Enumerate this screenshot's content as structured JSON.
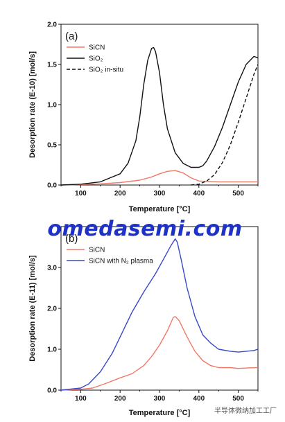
{
  "chart_data": [
    {
      "type": "line",
      "panel_label": "(a)",
      "xlabel": "Temperature [°C]",
      "ylabel": "Desorption rate (E-10) [mol/s]",
      "xlim": [
        50,
        550
      ],
      "ylim": [
        0,
        2.0
      ],
      "xticks": [
        100,
        200,
        300,
        400,
        500
      ],
      "yticks": [
        0.0,
        0.5,
        1.0,
        1.5,
        2.0
      ],
      "ytick_labels": [
        "0.0",
        "0.5",
        "1.0",
        "1.5",
        "2.0"
      ],
      "legend_position": "top-left",
      "series": [
        {
          "name": "SiCN",
          "color": "#f07868",
          "dash": "solid",
          "x": [
            50,
            100,
            150,
            200,
            250,
            280,
            300,
            320,
            340,
            360,
            380,
            400,
            420,
            450,
            500,
            550
          ],
          "y": [
            0.0,
            0.005,
            0.015,
            0.03,
            0.06,
            0.1,
            0.14,
            0.17,
            0.18,
            0.15,
            0.09,
            0.05,
            0.045,
            0.04,
            0.04,
            0.04
          ]
        },
        {
          "name": "SiO₂",
          "color": "#111111",
          "dash": "solid",
          "x": [
            50,
            100,
            150,
            200,
            220,
            240,
            250,
            260,
            270,
            280,
            285,
            290,
            300,
            310,
            320,
            340,
            360,
            380,
            400,
            410,
            420,
            440,
            460,
            480,
            500,
            520,
            540,
            550
          ],
          "y": [
            0.0,
            0.01,
            0.04,
            0.14,
            0.27,
            0.55,
            0.85,
            1.25,
            1.55,
            1.7,
            1.71,
            1.66,
            1.4,
            1.0,
            0.7,
            0.4,
            0.27,
            0.22,
            0.22,
            0.24,
            0.3,
            0.48,
            0.72,
            1.0,
            1.28,
            1.5,
            1.6,
            1.58
          ]
        },
        {
          "name": "SiO₂ in-situ",
          "color": "#111111",
          "dash": "dashed",
          "x": [
            380,
            400,
            420,
            440,
            460,
            480,
            500,
            520,
            540,
            550
          ],
          "y": [
            0.0,
            0.01,
            0.05,
            0.13,
            0.28,
            0.5,
            0.78,
            1.08,
            1.38,
            1.5
          ]
        }
      ]
    },
    {
      "type": "line",
      "panel_label": "(b)",
      "xlabel": "Temperature [°C]",
      "ylabel": "Desorption rate (E-11) [mol/s]",
      "xlim": [
        50,
        550
      ],
      "ylim": [
        0,
        4.0
      ],
      "xticks": [
        100,
        200,
        300,
        400,
        500
      ],
      "yticks": [
        0.0,
        1.0,
        2.0,
        3.0
      ],
      "ytick_labels": [
        "0.0",
        "1.0",
        "2.0",
        "3.0"
      ],
      "legend_position": "top-left",
      "series": [
        {
          "name": "SiCN",
          "color": "#f07868",
          "dash": "solid",
          "x": [
            50,
            100,
            130,
            160,
            200,
            230,
            260,
            280,
            300,
            320,
            335,
            340,
            350,
            370,
            390,
            410,
            430,
            450,
            480,
            500,
            520,
            550
          ],
          "y": [
            0.0,
            0.02,
            0.05,
            0.15,
            0.3,
            0.4,
            0.6,
            0.82,
            1.1,
            1.45,
            1.78,
            1.8,
            1.7,
            1.3,
            0.95,
            0.72,
            0.6,
            0.55,
            0.55,
            0.53,
            0.54,
            0.55
          ]
        },
        {
          "name": "SiCN with N₂ plasma",
          "color": "#3848c8",
          "dash": "solid",
          "x": [
            50,
            100,
            120,
            150,
            180,
            200,
            230,
            260,
            290,
            310,
            330,
            340,
            345,
            355,
            370,
            390,
            410,
            430,
            450,
            480,
            500,
            520,
            540,
            550
          ],
          "y": [
            0.0,
            0.05,
            0.15,
            0.45,
            0.9,
            1.3,
            1.9,
            2.4,
            2.85,
            3.2,
            3.55,
            3.7,
            3.62,
            3.2,
            2.5,
            1.8,
            1.35,
            1.15,
            1.0,
            0.95,
            0.93,
            0.95,
            0.97,
            1.0
          ]
        }
      ]
    }
  ],
  "watermark": "omedasemi.com",
  "footer": "半导体微纳加工工厂"
}
